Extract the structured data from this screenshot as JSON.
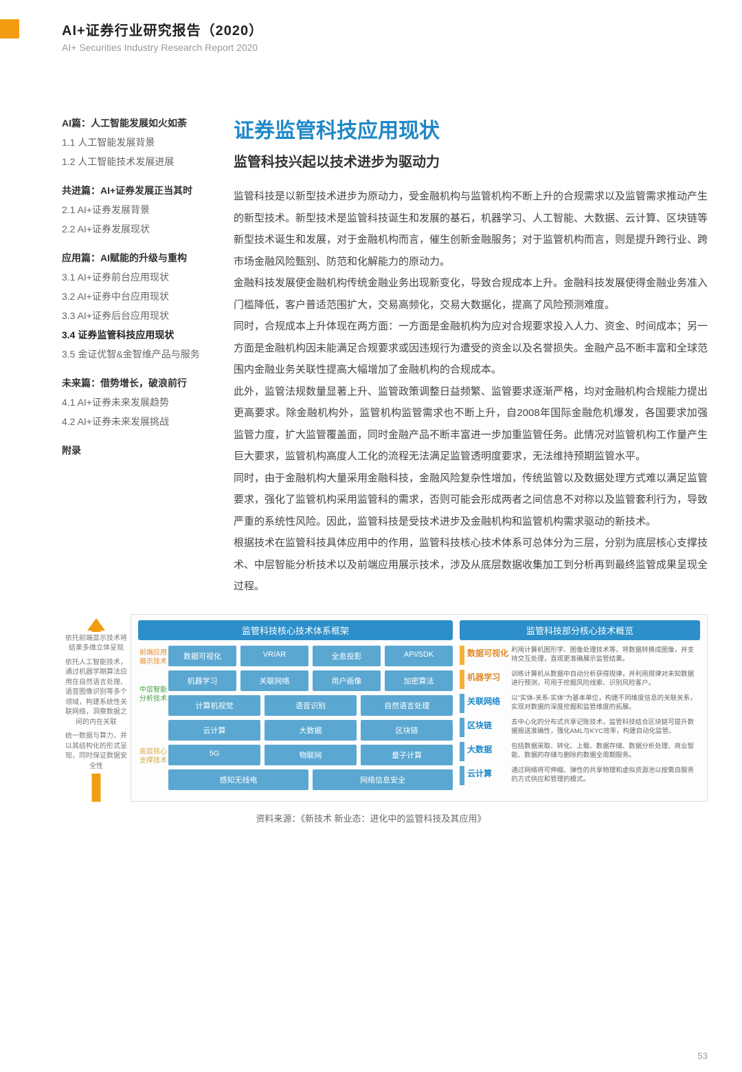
{
  "header": {
    "title_cn": "AI+证券行业研究报告（2020）",
    "title_en": "AI+ Securities Industry Research Report 2020"
  },
  "colors": {
    "orange": "#f39c12",
    "title_blue": "#1e88c7",
    "header_blue": "#2c8fc9",
    "block_blue": "#5aa7d1",
    "layer1_text": "#e08a2a",
    "layer2_text": "#4aa04a",
    "layer3_text": "#d4a93a"
  },
  "sidebar": {
    "sections": [
      {
        "title": "AI篇：人工智能发展如火如荼",
        "items": [
          "1.1 人工智能发展背景",
          "1.2 人工智能技术发展进展"
        ]
      },
      {
        "title": "共进篇：AI+证券发展正当其时",
        "items": [
          "2.1 AI+证券发展背景",
          "2.2 AI+证券发展现状"
        ]
      },
      {
        "title": "应用篇：AI赋能的升级与重构",
        "items": [
          "3.1 AI+证券前台应用现状",
          "3.2 AI+证券中台应用现状",
          "3.3 AI+证券后台应用现状",
          "3.4 证券监管科技应用现状",
          "3.5 金证优智&金智维产品与服务"
        ],
        "active_index": 3
      },
      {
        "title": "未来篇：借势增长，破浪前行",
        "items": [
          "4.1 AI+证券未来发展趋势",
          "4.2 AI+证券未来发展挑战"
        ]
      },
      {
        "title": "附录",
        "items": []
      }
    ]
  },
  "content": {
    "h1": "证券监管科技应用现状",
    "h2": "监管科技兴起以技术进步为驱动力",
    "paragraphs": [
      "监管科技是以新型技术进步为原动力，受金融机构与监管机构不断上升的合规需求以及监管需求推动产生的新型技术。新型技术是监管科技诞生和发展的基石，机器学习、人工智能、大数据、云计算、区块链等新型技术诞生和发展，对于金融机构而言，催生创新金融服务；对于监管机构而言，则是提升跨行业、跨市场金融风险甄别、防范和化解能力的原动力。",
      "金融科技发展使金融机构传统金融业务出现新变化，导致合规成本上升。金融科技发展使得金融业务准入门槛降低，客户普适范围扩大，交易高频化，交易大数据化，提高了风险预测难度。",
      "同时，合规成本上升体现在两方面：一方面是金融机构为应对合规要求投入人力、资金、时间成本；另一方面是金融机构因未能满足合规要求或因违规行为遭受的资金以及名誉损失。金融产品不断丰富和全球范围内金融业务关联性提高大幅增加了金融机构的合规成本。",
      "此外，监管法规数量显著上升、监管政策调整日益频繁、监管要求逐渐严格，均对金融机构合规能力提出更高要求。除金融机构外，监管机构监管需求也不断上升，自2008年国际金融危机爆发，各国要求加强监管力度，扩大监管覆盖面，同时金融产品不断丰富进一步加重监管任务。此情况对监管机构工作量产生巨大要求，监管机构高度人工化的流程无法满足监管透明度要求，无法维持预期监管水平。",
      "同时，由于金融机构大量采用金融科技，金融风险复杂性增加，传统监管以及数据处理方式难以满足监管要求，强化了监管机构采用监管科的需求，否则可能会形成两者之间信息不对称以及监管套利行为，导致严重的系统性风险。因此，监管科技是受技术进步及金融机构和监管机构需求驱动的新技术。",
      "根据技术在监管科技具体应用中的作用，监管科技核心技术体系可总体分为三层，分别为底层核心支撑技术、中层智能分析技术以及前端应用展示技术，涉及从底层数据收集加工到分析再到最终监管成果呈现全过程。"
    ]
  },
  "diagram": {
    "arrow_labels": [
      "依托前端显示技术将结果多维立体呈现",
      "依托人工智能技术，通过机器学期算法应用在自然语言处理、语音图像识别等多个领域，构建系统性关联网络，洞察数据之间的内在关联",
      "统一数据与算力，并以其结构化的形式呈现，同时保证数据安全性"
    ],
    "left_header": "监管科技核心技术体系框架",
    "right_header": "监管科技部分核心技术概览",
    "layers": [
      {
        "label": "前端应用展示技术",
        "label_color": "#e08a2a",
        "rows": [
          [
            "数据可视化",
            "VR/AR",
            "全息投影",
            "API/SDK"
          ]
        ]
      },
      {
        "label": "中层智能分析技术",
        "label_color": "#4aa04a",
        "rows": [
          [
            "机器学习",
            "关联网络",
            "用户画像",
            "加密算法"
          ],
          [
            "计算机视觉",
            "语音识别",
            "自然语言处理"
          ]
        ]
      },
      {
        "label": "底层核心支撑技术",
        "label_color": "#d4a93a",
        "rows": [
          [
            "云计算",
            "大数据",
            "区块链"
          ],
          [
            "5G",
            "物联网",
            "量子计算"
          ],
          [
            "感知无线电",
            "网络信息安全"
          ]
        ]
      }
    ],
    "overview": [
      {
        "marker": "#f3b23a",
        "label": "数据可视化",
        "label_color": "#e08a2a",
        "desc": "利用计算机图形学、图像处理技术等，将数据转换成图像，并支持交互处理，直观更准确展示监管结果。"
      },
      {
        "marker": "#f3b23a",
        "label": "机器学习",
        "label_color": "#e08a2a",
        "desc": "训练计算机从数据中自动分析获得规律，并利用规律对未知数据进行预测，可用于挖掘风险线索、识别风险客户。"
      },
      {
        "marker": "#5aa7d1",
        "label": "关联网络",
        "label_color": "#1e88c7",
        "desc": "以\"实体-关系-实体\"为基本单位，构建不同维度信息的关联关系，实现对数据的深度挖掘和监管维度的拓展。"
      },
      {
        "marker": "#5aa7d1",
        "label": "区块链",
        "label_color": "#1e88c7",
        "desc": "去中心化的分布式共享记账技术，监管科技结合区块链可提升数据报送准确性，强化AML与KYC效率，构建自动化监管。"
      },
      {
        "marker": "#5aa7d1",
        "label": "大数据",
        "label_color": "#1e88c7",
        "desc": "包括数据采取、转化、上载、数据存储、数据分析处理、商业智能、数据的存储与删除的数据全周期服务。"
      },
      {
        "marker": "#5aa7d1",
        "label": "云计算",
        "label_color": "#1e88c7",
        "desc": "通过网络将可伸缩、弹性的共享物理和虚拟资源池以按需自服务的方式供应和管理的模式。"
      }
    ],
    "source": "资料来源：《新技术 新业态：进化中的监管科技及其应用》"
  },
  "page_number": "53"
}
